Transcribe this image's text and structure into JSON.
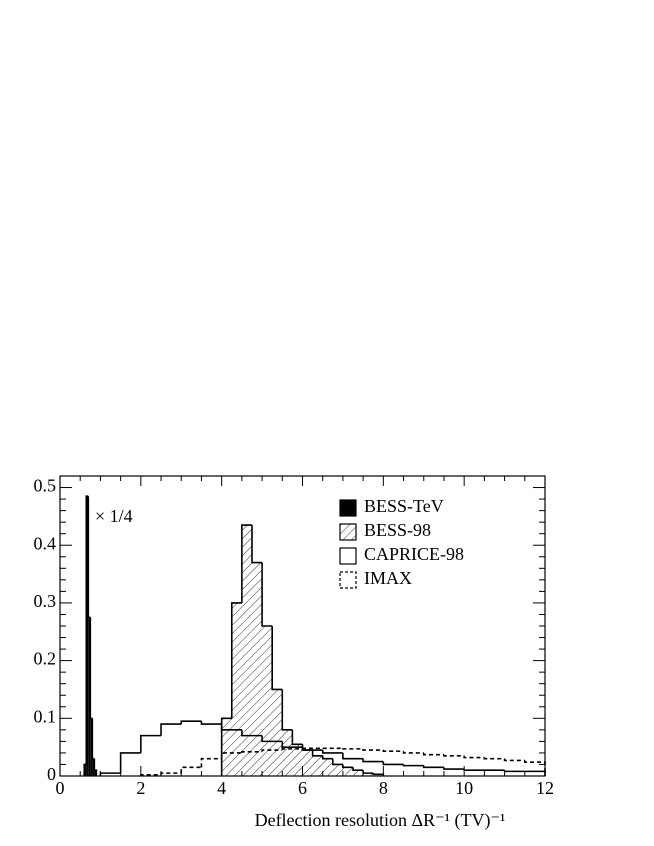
{
  "chart_data": {
    "type": "histogram",
    "x_label": "Deflection resolution   ΔR⁻¹ (TV)⁻¹",
    "annotation": "× 1/4",
    "xlim": [
      0,
      12
    ],
    "xticks": [
      0,
      2,
      4,
      6,
      8,
      10,
      12
    ],
    "ylim": [
      0,
      0.52
    ],
    "yticks": [
      0,
      0.1,
      0.2,
      0.3,
      0.4,
      0.5
    ],
    "legend": "upper right",
    "series": [
      {
        "name": "BESS-TeV",
        "color": "#000000",
        "style": "filled",
        "bins": [
          0.6,
          0.65,
          0.7,
          0.75,
          0.8,
          0.85,
          0.9
        ],
        "values": [
          0.02,
          0.485,
          0.275,
          0.1,
          0.03,
          0.01
        ]
      },
      {
        "name": "BESS-98",
        "color": "#000000",
        "style": "hatched",
        "bins": [
          4.0,
          4.25,
          4.5,
          4.75,
          5.0,
          5.25,
          5.5,
          5.75,
          6.0,
          6.25,
          6.5,
          6.75,
          7.0,
          7.25,
          7.5,
          7.75,
          8.0
        ],
        "values": [
          0.1,
          0.3,
          0.435,
          0.37,
          0.26,
          0.15,
          0.08,
          0.055,
          0.045,
          0.035,
          0.03,
          0.02,
          0.015,
          0.01,
          0.005,
          0.003
        ]
      },
      {
        "name": "CAPRICE-98",
        "color": "#000000",
        "style": "open",
        "bins": [
          1.0,
          1.5,
          2.0,
          2.5,
          3.0,
          3.5,
          4.0,
          4.5,
          5.0,
          5.5,
          6.0,
          6.5,
          7.0,
          7.5,
          8.0,
          8.5,
          9.0,
          9.5,
          10.0,
          10.5,
          11.0,
          11.5,
          12.0
        ],
        "values": [
          0.005,
          0.04,
          0.07,
          0.09,
          0.095,
          0.09,
          0.08,
          0.07,
          0.06,
          0.05,
          0.045,
          0.04,
          0.03,
          0.025,
          0.02,
          0.018,
          0.015,
          0.012,
          0.01,
          0.01,
          0.008,
          0.008
        ]
      },
      {
        "name": "IMAX",
        "color": "#000000",
        "style": "dashed",
        "bins": [
          2.0,
          2.5,
          3.0,
          3.5,
          4.0,
          4.5,
          5.0,
          5.5,
          6.0,
          6.5,
          7.0,
          7.5,
          8.0,
          8.5,
          9.0,
          9.5,
          10.0,
          10.5,
          11.0,
          11.5,
          12.0
        ],
        "values": [
          0.002,
          0.005,
          0.015,
          0.03,
          0.04,
          0.042,
          0.045,
          0.047,
          0.048,
          0.048,
          0.047,
          0.045,
          0.043,
          0.04,
          0.037,
          0.035,
          0.032,
          0.03,
          0.027,
          0.024
        ]
      }
    ]
  }
}
